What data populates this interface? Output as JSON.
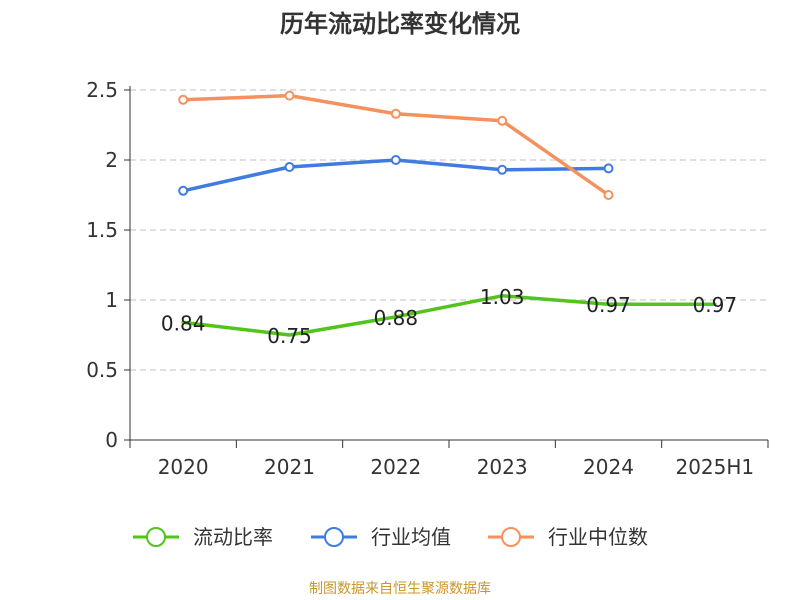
{
  "chart_data": {
    "type": "line",
    "title": "历年流动比率变化情况",
    "categories": [
      "2020",
      "2021",
      "2022",
      "2023",
      "2024",
      "2025H1"
    ],
    "y_ticks": [
      "0",
      "0.5",
      "1",
      "1.5",
      "2",
      "2.5"
    ],
    "ylim": [
      0,
      2.5
    ],
    "grid": true,
    "legend_position": "bottom",
    "series": [
      {
        "name": "流动比率",
        "color": "#52c41a",
        "values": [
          0.84,
          0.75,
          0.88,
          1.03,
          0.97,
          0.97
        ],
        "labels": [
          "0.84",
          "0.75",
          "0.88",
          "1.03",
          "0.97",
          "0.97"
        ],
        "show_markers": false
      },
      {
        "name": "行业均值",
        "color": "#3f7be0",
        "values": [
          1.78,
          1.95,
          2.0,
          1.93,
          1.94,
          null
        ],
        "show_markers": true
      },
      {
        "name": "行业中位数",
        "color": "#f5915d",
        "values": [
          2.43,
          2.46,
          2.33,
          2.28,
          1.75,
          null
        ],
        "show_markers": true
      }
    ]
  },
  "footer": {
    "text": "制图数据来自恒生聚源数据库",
    "color": "#c9962c"
  }
}
